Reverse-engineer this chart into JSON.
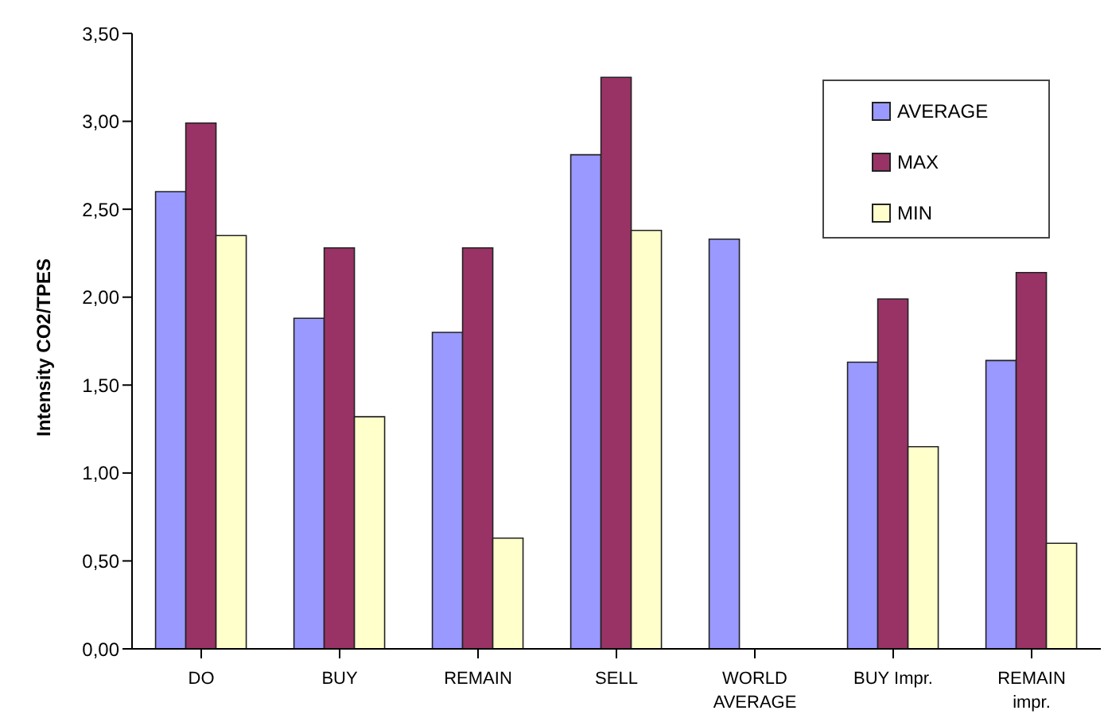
{
  "chart_data": {
    "type": "bar",
    "ylabel": "Intensity CO2/TPES",
    "categories": [
      "DO",
      "BUY",
      "REMAIN",
      "SELL",
      "WORLD AVERAGE",
      "BUY Impr.",
      "REMAIN impr."
    ],
    "series": [
      {
        "name": "AVERAGE",
        "color": "#9999ff",
        "values": [
          2.6,
          1.88,
          1.8,
          2.81,
          2.33,
          1.63,
          1.64
        ]
      },
      {
        "name": "MAX",
        "color": "#993366",
        "values": [
          2.99,
          2.28,
          2.28,
          3.25,
          null,
          1.99,
          2.14
        ]
      },
      {
        "name": "MIN",
        "color": "#ffffcc",
        "values": [
          2.35,
          1.32,
          0.63,
          2.38,
          null,
          1.15,
          0.6
        ]
      }
    ],
    "ylim": [
      0,
      3.5
    ],
    "yticks": [
      {
        "value": 0,
        "label": "0,00"
      },
      {
        "value": 0.5,
        "label": "0,50"
      },
      {
        "value": 1,
        "label": "1,00"
      },
      {
        "value": 1.5,
        "label": "1,50"
      },
      {
        "value": 2,
        "label": "2,00"
      },
      {
        "value": 2.5,
        "label": "2,50"
      },
      {
        "value": 3,
        "label": "3,00"
      },
      {
        "value": 3.5,
        "label": "3,50"
      }
    ],
    "grid": false,
    "legend": "top right"
  }
}
